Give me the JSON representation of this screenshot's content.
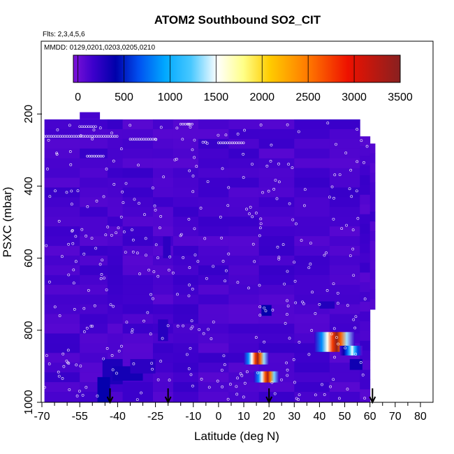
{
  "chart_data": {
    "type": "heatmap",
    "title": "ATOM2 Southbound SO2_CIT",
    "subtitle_flights": "Flts: 2,3,4,5,6",
    "subtitle_dates": "MMDD: 0129,0201,0203,0205,0210",
    "xlabel": "Latitude (deg N)",
    "ylabel": "PSXC (mbar)",
    "xlim": [
      -70,
      85
    ],
    "ylim": [
      1000,
      0
    ],
    "x_ticks": [
      -70,
      -55,
      -40,
      -25,
      -10,
      0,
      10,
      20,
      30,
      40,
      50,
      60,
      70,
      80
    ],
    "x_minor_ticks": [
      -65,
      -60,
      -50,
      -45,
      -35,
      -30,
      -20,
      -15,
      -5,
      5,
      15,
      25,
      35,
      45,
      55,
      65,
      75
    ],
    "y_ticks": [
      200,
      400,
      600,
      800,
      1000
    ],
    "colorbar": {
      "ticks": [
        0,
        500,
        1000,
        1500,
        2000,
        2500,
        3000,
        3500
      ],
      "range": [
        -50,
        3500
      ]
    },
    "background_value": 120,
    "blocks": [
      {
        "lat": [
          -46,
          -38
        ],
        "p": [
          880,
          950
        ],
        "value": 280
      },
      {
        "lat": [
          -42,
          -30
        ],
        "p": [
          900,
          940
        ],
        "value": 320
      },
      {
        "lat": [
          -48,
          -43
        ],
        "p": [
          930,
          1000
        ],
        "value": 380
      },
      {
        "lat": [
          -35,
          -25
        ],
        "p": [
          880,
          920
        ],
        "value": 220
      },
      {
        "lat": [
          -24,
          -20
        ],
        "p": [
          770,
          830
        ],
        "value": 240
      },
      {
        "lat": [
          -22,
          -19
        ],
        "p": [
          540,
          600
        ],
        "value": 220
      },
      {
        "lat": [
          17,
          21
        ],
        "p": [
          730,
          760
        ],
        "value": 380
      },
      {
        "lat": [
          40,
          46
        ],
        "p": [
          720,
          740
        ],
        "value": 260
      },
      {
        "lat": [
          52,
          57
        ],
        "p": [
          880,
          910
        ],
        "value": 340
      }
    ],
    "plumes": [
      {
        "lat": [
          10,
          20
        ],
        "p": [
          862,
          895
        ],
        "peak": 3400
      },
      {
        "lat": [
          14,
          24
        ],
        "p": [
          914,
          945
        ],
        "peak": 3300
      },
      {
        "lat": [
          38,
          54
        ],
        "p": [
          805,
          860
        ],
        "peak": 3450
      },
      {
        "lat": [
          48,
          57
        ],
        "p": [
          843,
          870
        ],
        "peak": 1500
      }
    ],
    "flight_markers_lat": [
      -43,
      -20,
      20,
      61
    ],
    "flight_marker_p": 1000
  }
}
